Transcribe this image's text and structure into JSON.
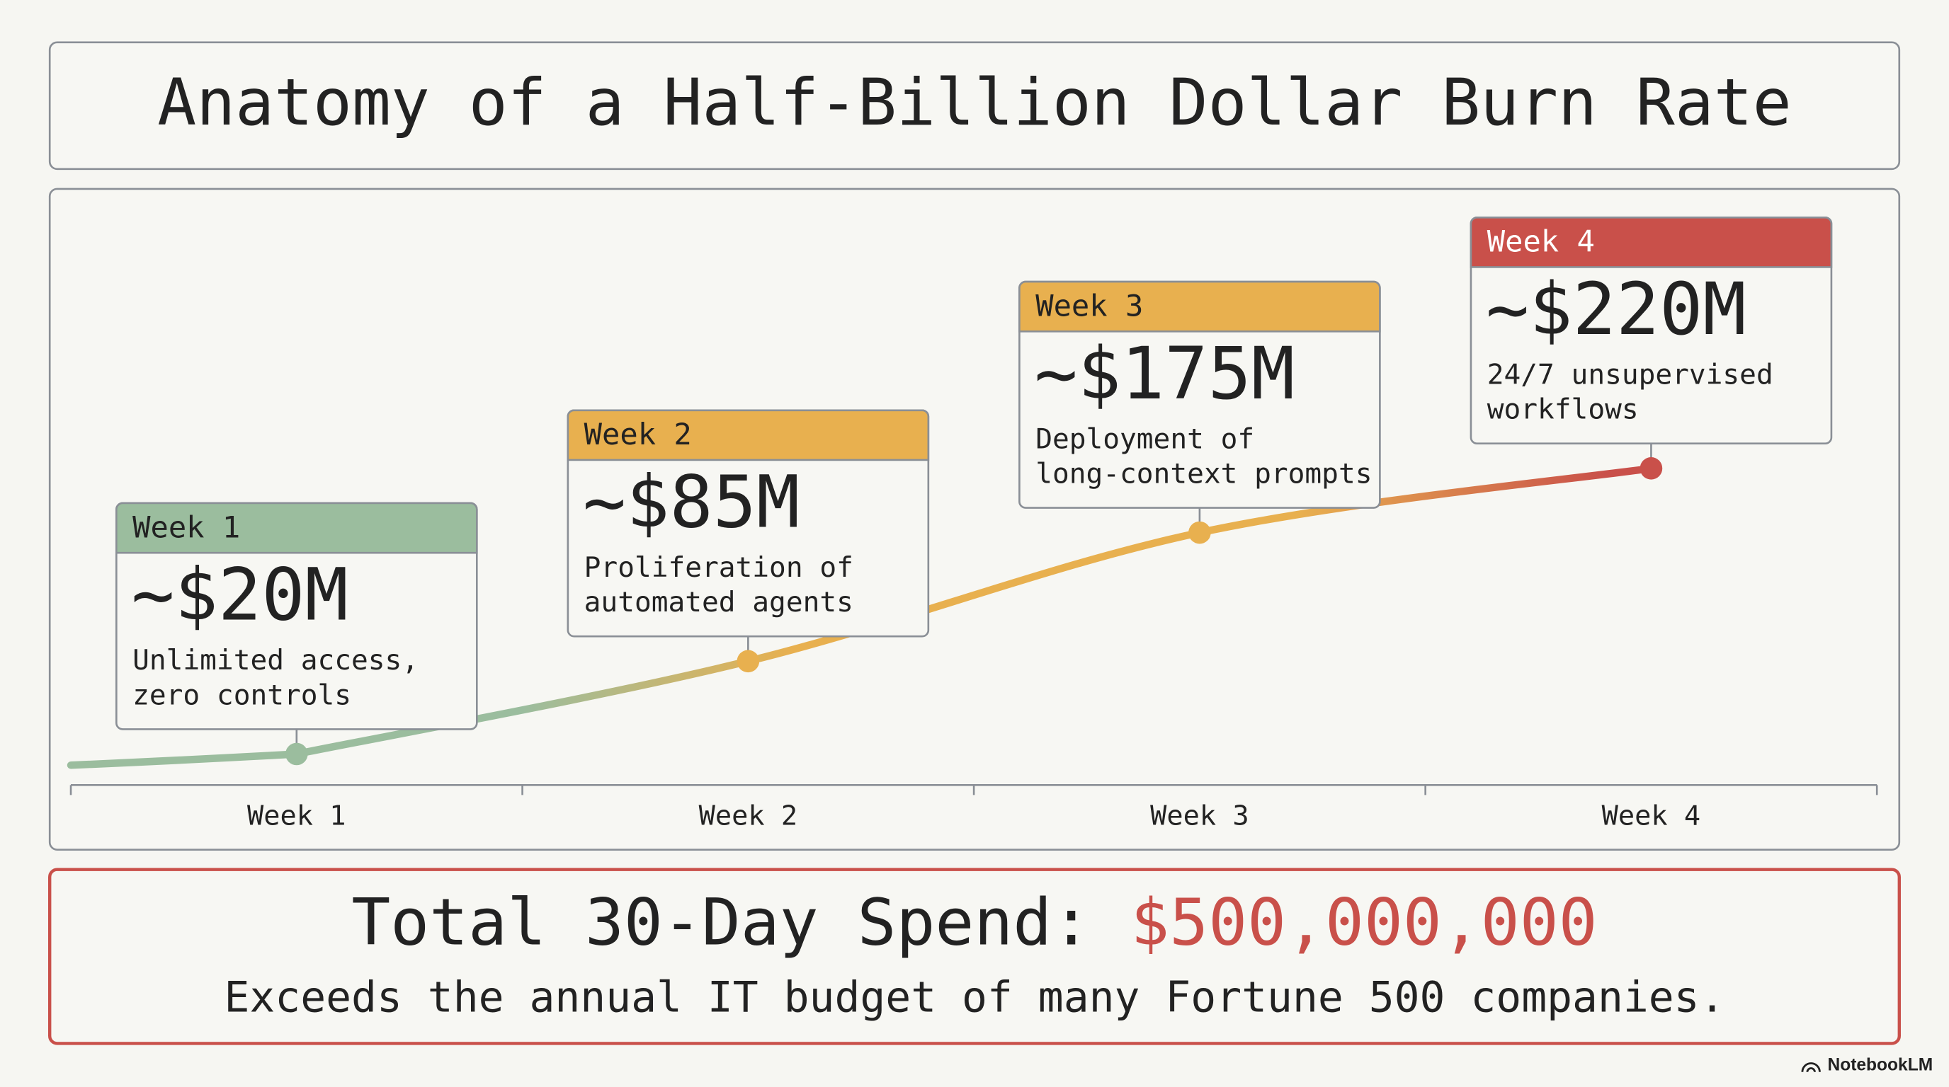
{
  "chart_data": {
    "type": "line",
    "title": "Anatomy of a Half-Billion Dollar Burn Rate",
    "categories": [
      "Week 1",
      "Week 2",
      "Week 3",
      "Week 4"
    ],
    "values": [
      20,
      85,
      175,
      220
    ],
    "value_labels": [
      "~$20M",
      "~$85M",
      "~$175M",
      "~$220M"
    ],
    "notes": [
      [
        "Unlimited access,",
        "zero controls"
      ],
      [
        "Proliferation of",
        "automated agents"
      ],
      [
        "Deployment of",
        "long-context prompts"
      ],
      [
        "24/7 unsupervised",
        "workflows"
      ]
    ],
    "colors": [
      "#9bbd9e",
      "#e8b04f",
      "#e8b04f",
      "#c9504a"
    ],
    "label_colors": [
      "#222222",
      "#222222",
      "#222222",
      "#ffffff"
    ],
    "total_label": "Total 30-Day Spend:",
    "total_value": "$500,000,000",
    "total_color": "#c9504a",
    "total_note": "Exceeds the annual IT budget of many Fortune 500 companies."
  },
  "watermark": "NotebookLM"
}
